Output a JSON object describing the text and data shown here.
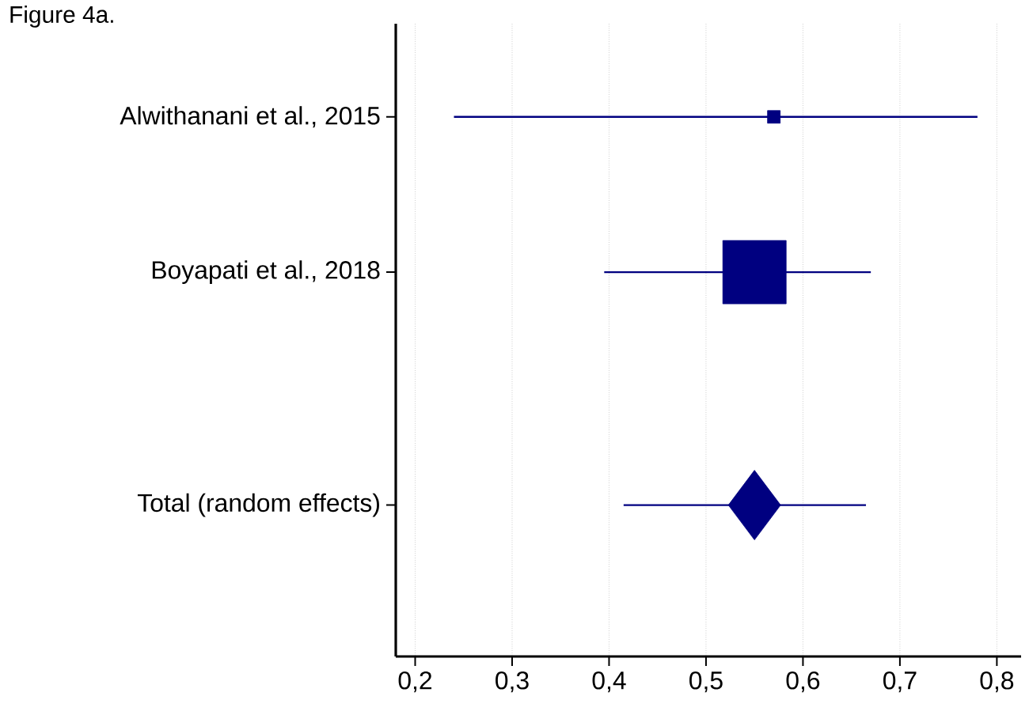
{
  "chart_data": {
    "type": "scatter",
    "title": "Figure 4a.",
    "orientation": "horizontal",
    "categories": [
      "Alwithanani et al., 2015",
      null,
      "Boyapati et al., 2018",
      null,
      null,
      "Total (random effects)",
      null
    ],
    "series": [
      {
        "type": "bubble",
        "color": "#000080",
        "marker": "square",
        "values": [
          0.57,
          null,
          0.55,
          null,
          null,
          null,
          null
        ],
        "sizes": [
          0.04,
          null,
          1,
          null,
          null,
          null,
          null
        ],
        "errors": [
          [
            0.24,
            0.78
          ],
          null,
          [
            0.395,
            0.67
          ],
          null,
          null,
          null,
          null
        ]
      },
      {
        "type": "scatter",
        "color": "#000080",
        "marker": "diamond",
        "values": [
          null,
          null,
          null,
          null,
          null,
          0.55,
          null
        ],
        "errors": [
          null,
          null,
          null,
          null,
          null,
          [
            0.415,
            0.665
          ],
          null
        ]
      }
    ],
    "xlim": [
      0.18,
      0.825
    ],
    "xticks": [
      {
        "value": 0.2,
        "label": "0,2"
      },
      {
        "value": 0.3,
        "label": "0,3"
      },
      {
        "value": 0.4,
        "label": "0,4"
      },
      {
        "value": 0.5,
        "label": "0,5"
      },
      {
        "value": 0.6,
        "label": "0,6"
      },
      {
        "value": 0.7,
        "label": "0,7"
      },
      {
        "value": 0.8,
        "label": "0,8"
      }
    ],
    "grid": "x"
  }
}
